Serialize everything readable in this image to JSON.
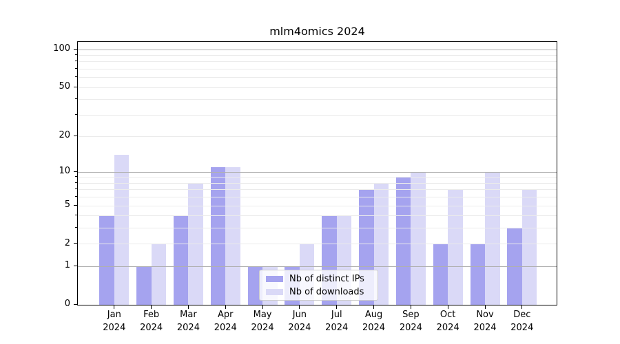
{
  "chart_data": {
    "type": "bar",
    "title": "mlm4omics 2024",
    "categories": [
      "Jan",
      "Feb",
      "Mar",
      "Apr",
      "May",
      "Jun",
      "Jul",
      "Aug",
      "Sep",
      "Oct",
      "Nov",
      "Dec"
    ],
    "year_label": "2024",
    "series": [
      {
        "name": "Nb of distinct IPs",
        "color": "#a5a3ef",
        "values": [
          4,
          1,
          4,
          11,
          1,
          1,
          4,
          7,
          9,
          2,
          2,
          3
        ]
      },
      {
        "name": "Nb of downloads",
        "color": "#dad9f7",
        "values": [
          14,
          2,
          8,
          11,
          1,
          2,
          4,
          8,
          10,
          7,
          10,
          7
        ]
      }
    ],
    "yscale": "log1p",
    "ylim": [
      0,
      115
    ],
    "yticks_labeled": [
      0,
      1,
      2,
      5,
      10,
      20,
      50,
      100
    ],
    "gridlines_major": [
      1,
      10,
      100
    ],
    "gridlines_minor": [
      2,
      3,
      4,
      5,
      6,
      7,
      8,
      9,
      20,
      30,
      40,
      50,
      60,
      70,
      80,
      90
    ],
    "grid_color_major": "#b0b0b0",
    "grid_color_minor": "#ebebeb",
    "legend_position": "lower center",
    "xlabel": "",
    "ylabel": ""
  }
}
